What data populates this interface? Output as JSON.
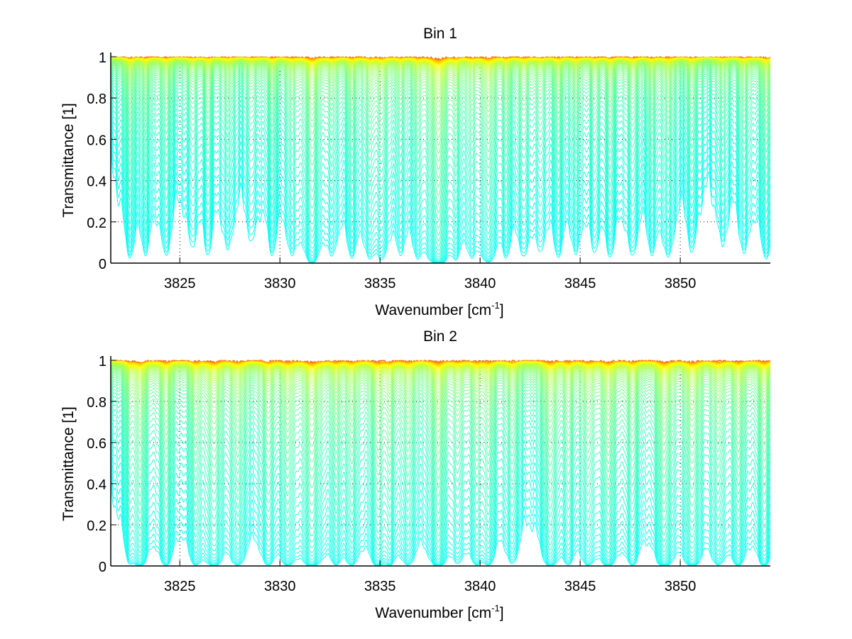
{
  "chart_data": [
    {
      "type": "line",
      "title": "Bin 1",
      "xlabel": "Wavenumber [cm",
      "xlabel_superscript": "-1",
      "xlabel_suffix": "]",
      "ylabel": "Transmittance [1]",
      "xlim": [
        3821.55,
        3854.5
      ],
      "ylim": [
        0,
        1
      ],
      "xticks": [
        3825,
        3830,
        3835,
        3840,
        3845,
        3850
      ],
      "xtick_labels": [
        "3825",
        "3830",
        "3835",
        "3840",
        "3845",
        "3850"
      ],
      "yticks": [
        0,
        0.2,
        0.4,
        0.6,
        0.8,
        1
      ],
      "ytick_labels": [
        "0",
        "0.2",
        "0.4",
        "0.6",
        "0.8",
        "1"
      ],
      "grid": "dotted",
      "legend": "none",
      "colormap": "jet (dark red = most opaque curve, cyan/blue = most transparent)",
      "series_count": 60,
      "series_description": "Family of transmittance spectra for increasing optical depth; transmittance drops from ~1 to ~0",
      "absorption_lines": [
        {
          "center": 3822.5,
          "strength": 0.55,
          "width": 0.22
        },
        {
          "center": 3823.3,
          "strength": 0.45,
          "width": 0.2
        },
        {
          "center": 3824.3,
          "strength": 0.5,
          "width": 0.22
        },
        {
          "center": 3825.6,
          "strength": 0.35,
          "width": 0.22
        },
        {
          "center": 3826.4,
          "strength": 0.45,
          "width": 0.2
        },
        {
          "center": 3827.4,
          "strength": 0.4,
          "width": 0.22
        },
        {
          "center": 3828.6,
          "strength": 0.3,
          "width": 0.22
        },
        {
          "center": 3829.6,
          "strength": 0.45,
          "width": 0.2
        },
        {
          "center": 3830.6,
          "strength": 0.45,
          "width": 0.2
        },
        {
          "center": 3831.6,
          "strength": 1.0,
          "width": 0.3
        },
        {
          "center": 3832.6,
          "strength": 0.45,
          "width": 0.2
        },
        {
          "center": 3833.6,
          "strength": 0.5,
          "width": 0.22
        },
        {
          "center": 3834.5,
          "strength": 0.55,
          "width": 0.22
        },
        {
          "center": 3835.1,
          "strength": 0.6,
          "width": 0.22
        },
        {
          "center": 3836.0,
          "strength": 0.4,
          "width": 0.2
        },
        {
          "center": 3836.9,
          "strength": 0.45,
          "width": 0.22
        },
        {
          "center": 3837.9,
          "strength": 1.6,
          "width": 0.32
        },
        {
          "center": 3838.8,
          "strength": 0.45,
          "width": 0.2
        },
        {
          "center": 3839.6,
          "strength": 0.45,
          "width": 0.2
        },
        {
          "center": 3840.4,
          "strength": 0.9,
          "width": 0.28
        },
        {
          "center": 3841.3,
          "strength": 0.45,
          "width": 0.2
        },
        {
          "center": 3842.2,
          "strength": 0.5,
          "width": 0.22
        },
        {
          "center": 3843.0,
          "strength": 0.4,
          "width": 0.2
        },
        {
          "center": 3843.9,
          "strength": 0.5,
          "width": 0.22
        },
        {
          "center": 3844.8,
          "strength": 0.45,
          "width": 0.2
        },
        {
          "center": 3845.7,
          "strength": 0.4,
          "width": 0.2
        },
        {
          "center": 3846.5,
          "strength": 0.5,
          "width": 0.22
        },
        {
          "center": 3847.6,
          "strength": 0.5,
          "width": 0.22
        },
        {
          "center": 3848.6,
          "strength": 0.45,
          "width": 0.2
        },
        {
          "center": 3849.4,
          "strength": 0.55,
          "width": 0.22
        },
        {
          "center": 3850.6,
          "strength": 0.45,
          "width": 0.2
        },
        {
          "center": 3852.1,
          "strength": 0.35,
          "width": 0.22
        },
        {
          "center": 3853.2,
          "strength": 0.45,
          "width": 0.22
        },
        {
          "center": 3854.3,
          "strength": 0.6,
          "width": 0.25
        }
      ]
    },
    {
      "type": "line",
      "title": "Bin 2",
      "xlabel": "Wavenumber [cm",
      "xlabel_superscript": "-1",
      "xlabel_suffix": "]",
      "ylabel": "Transmittance [1]",
      "xlim": [
        3821.55,
        3854.5
      ],
      "ylim": [
        0,
        1
      ],
      "xticks": [
        3825,
        3830,
        3835,
        3840,
        3845,
        3850
      ],
      "xtick_labels": [
        "3825",
        "3830",
        "3835",
        "3840",
        "3845",
        "3850"
      ],
      "yticks": [
        0,
        0.2,
        0.4,
        0.6,
        0.8,
        1
      ],
      "ytick_labels": [
        "0",
        "0.2",
        "0.4",
        "0.6",
        "0.8",
        "1"
      ],
      "grid": "dotted",
      "legend": "none",
      "colormap": "jet (dark red = most opaque curve, cyan/blue = most transparent)",
      "series_count": 60,
      "series_description": "Family of transmittance spectra for increasing optical depth; transmittance drops from ~1 to ~0",
      "absorption_lines": [
        {
          "center": 3822.5,
          "strength": 0.5,
          "width": 0.2
        },
        {
          "center": 3823.0,
          "strength": 1.1,
          "width": 0.28
        },
        {
          "center": 3824.3,
          "strength": 0.9,
          "width": 0.26
        },
        {
          "center": 3825.8,
          "strength": 0.8,
          "width": 0.26
        },
        {
          "center": 3826.7,
          "strength": 1.1,
          "width": 0.3
        },
        {
          "center": 3827.9,
          "strength": 0.9,
          "width": 0.28
        },
        {
          "center": 3829.4,
          "strength": 0.8,
          "width": 0.26
        },
        {
          "center": 3830.4,
          "strength": 0.9,
          "width": 0.28
        },
        {
          "center": 3831.6,
          "strength": 1.3,
          "width": 0.34
        },
        {
          "center": 3832.8,
          "strength": 0.7,
          "width": 0.24
        },
        {
          "center": 3833.6,
          "strength": 0.8,
          "width": 0.26
        },
        {
          "center": 3834.9,
          "strength": 1.0,
          "width": 0.28
        },
        {
          "center": 3835.5,
          "strength": 0.7,
          "width": 0.22
        },
        {
          "center": 3836.4,
          "strength": 0.8,
          "width": 0.26
        },
        {
          "center": 3837.9,
          "strength": 1.3,
          "width": 0.3
        },
        {
          "center": 3838.9,
          "strength": 0.6,
          "width": 0.22
        },
        {
          "center": 3839.8,
          "strength": 0.7,
          "width": 0.24
        },
        {
          "center": 3840.4,
          "strength": 0.8,
          "width": 0.26
        },
        {
          "center": 3841.6,
          "strength": 0.7,
          "width": 0.24
        },
        {
          "center": 3843.5,
          "strength": 1.1,
          "width": 0.28
        },
        {
          "center": 3844.4,
          "strength": 0.7,
          "width": 0.24
        },
        {
          "center": 3845.4,
          "strength": 0.8,
          "width": 0.26
        },
        {
          "center": 3846.4,
          "strength": 1.1,
          "width": 0.3
        },
        {
          "center": 3847.6,
          "strength": 0.8,
          "width": 0.26
        },
        {
          "center": 3849.2,
          "strength": 1.3,
          "width": 0.3
        },
        {
          "center": 3850.6,
          "strength": 1.2,
          "width": 0.3
        },
        {
          "center": 3851.9,
          "strength": 0.8,
          "width": 0.26
        },
        {
          "center": 3852.9,
          "strength": 0.9,
          "width": 0.28
        },
        {
          "center": 3854.2,
          "strength": 1.0,
          "width": 0.28
        }
      ]
    }
  ]
}
